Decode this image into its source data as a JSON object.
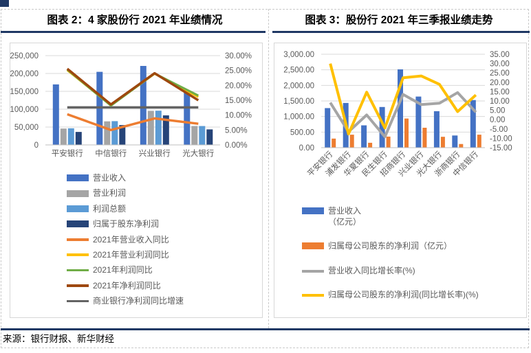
{
  "header": {
    "left_title": "图表 2：4 家股份行 2021 年业绩情况",
    "right_title": "图表 3：股份行 2021 年三季报业绩走势"
  },
  "footer": {
    "source": "来源：银行财报、新华财经"
  },
  "colors": {
    "accent_rule": "#1F3864",
    "grid_line": "#D9D9D9",
    "axis_line": "#BFBFBF",
    "axis_text": "#595959"
  },
  "chart_data": [
    {
      "id": "chart2",
      "type": "bar+line",
      "title": "图表 2：4 家股份行 2021 年业绩情况",
      "categories": [
        "平安银行",
        "中信银行",
        "兴业银行",
        "光大银行"
      ],
      "left_axis": {
        "min": 0,
        "max": 250000,
        "tick_labels": [
          "250,000",
          "200,000",
          "150,000",
          "100,000",
          "50,000",
          "0"
        ]
      },
      "right_axis": {
        "min": 0,
        "max": 30,
        "tick_labels": [
          "30.00%",
          "25.00%",
          "20.00%",
          "15.00%",
          "10.00%",
          "5.00%",
          "0.00%"
        ]
      },
      "bar_series": [
        {
          "name": "营业收入",
          "color": "#4472C4",
          "values": [
            169383,
            204557,
            221236,
            152751
          ]
        },
        {
          "name": "营业利润",
          "color": "#A5A5A5",
          "values": [
            45700,
            66000,
            95300,
            52800
          ]
        },
        {
          "name": "利润总额",
          "color": "#5B9BD5",
          "values": [
            46455,
            66550,
            95700,
            52930
          ]
        },
        {
          "name": "归属于股东净利润",
          "color": "#264478",
          "values": [
            36336,
            55641,
            82680,
            43407
          ]
        }
      ],
      "line_series": [
        {
          "name": "2021年营业收入同比",
          "color": "#ED7D31",
          "values": [
            10.3,
            5.0,
            8.9,
            7.1
          ]
        },
        {
          "name": "2021年营业利润同比",
          "color": "#FFC000",
          "values": [
            25.1,
            13.3,
            23.9,
            16.1
          ]
        },
        {
          "name": "2021年利润同比",
          "color": "#70AD47",
          "values": [
            25.3,
            13.2,
            24.0,
            16.6
          ]
        },
        {
          "name": "2021年净利润同比",
          "color": "#9E480E",
          "values": [
            25.6,
            13.6,
            24.1,
            15.0
          ]
        },
        {
          "name": "商业银行净利润同比增速",
          "color": "#636363",
          "values": [
            12.6,
            12.6,
            12.6,
            12.6
          ]
        }
      ],
      "legend_position": "bottom"
    },
    {
      "id": "chart3",
      "type": "bar+line",
      "title": "图表 3：股份行 2021 年三季报业绩走势",
      "categories": [
        "平安银行",
        "浦发银行",
        "华夏银行",
        "民生银行",
        "招商银行",
        "兴业银行",
        "光大银行",
        "浙商银行",
        "中信银行"
      ],
      "left_axis": {
        "min": 0,
        "max": 3000,
        "tick_labels": [
          "3,000.00",
          "2,500.00",
          "2,000.00",
          "1,500.00",
          "1,000.00",
          "500.00",
          "0.00"
        ]
      },
      "right_axis": {
        "min": -15,
        "max": 35,
        "tick_labels": [
          "35.00",
          "30.00",
          "25.00",
          "20.00",
          "15.00",
          "10.00",
          "5.00",
          "0.00",
          "-5.00",
          "-10.00",
          "-15.00"
        ]
      },
      "bar_series": [
        {
          "name": "营业收入\n（亿元）",
          "color": "#4472C4",
          "values": [
            1271.6,
            1435.2,
            716.7,
            1306.2,
            2514.1,
            1640.5,
            1171.5,
            390.3,
            1528.1
          ]
        },
        {
          "name": "归属母公司股东的净利润（亿元）",
          "color": "#ED7D31",
          "values": [
            291.4,
            417.5,
            157.4,
            354.9,
            936.2,
            640.4,
            349.2,
            116.5,
            417.6
          ]
        }
      ],
      "line_series": [
        {
          "name": "营业收入同比增长率(%)",
          "color": "#A5A5A5",
          "values": [
            9.1,
            -6.5,
            2.5,
            -9.2,
            13.5,
            8.1,
            8.8,
            14.5,
            4.0
          ]
        },
        {
          "name": "归属母公司股东的净利润(同比增长率)(%)",
          "color": "#FFC000",
          "values": [
            30.0,
            -7.7,
            14.7,
            -4.5,
            22.4,
            23.4,
            18.9,
            4.3,
            13.2
          ]
        }
      ],
      "legend_position": "bottom"
    }
  ]
}
